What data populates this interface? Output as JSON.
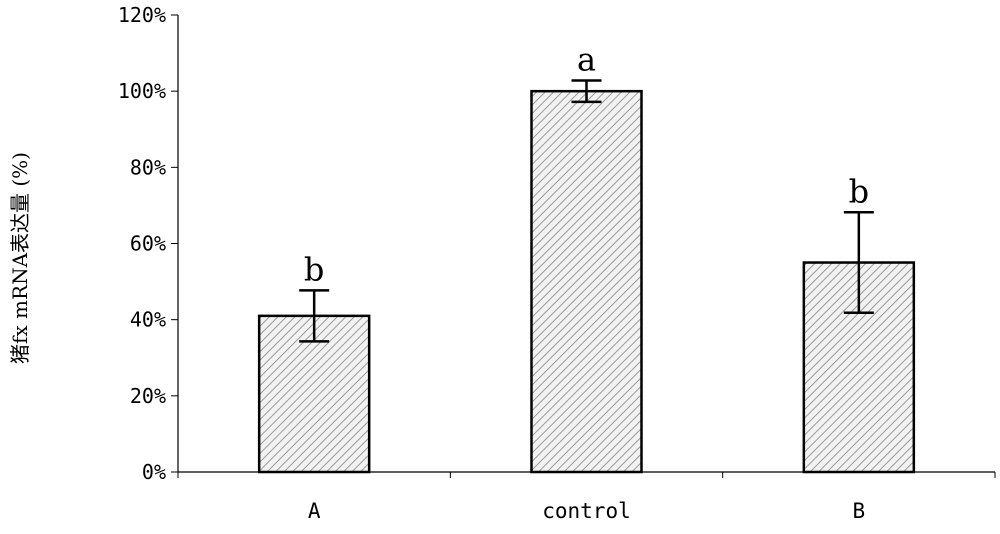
{
  "chart_data": {
    "type": "bar",
    "categories": [
      "A",
      "control",
      "B"
    ],
    "values": [
      41,
      100,
      55
    ],
    "errors": [
      6.7,
      2.8,
      13.2
    ],
    "significance_labels": [
      "b",
      "a",
      "b"
    ],
    "ylabel": "猪fx mRNA表达量 (%)",
    "xlabel": "",
    "ylim": [
      0,
      120
    ],
    "yticks": [
      "0%",
      "20%",
      "40%",
      "60%",
      "80%",
      "100%",
      "120%"
    ],
    "grid": false,
    "bar_fill": "hatched gray",
    "colors": {
      "bar_edge": "#000000",
      "hatch": "#9a9a9a"
    }
  }
}
